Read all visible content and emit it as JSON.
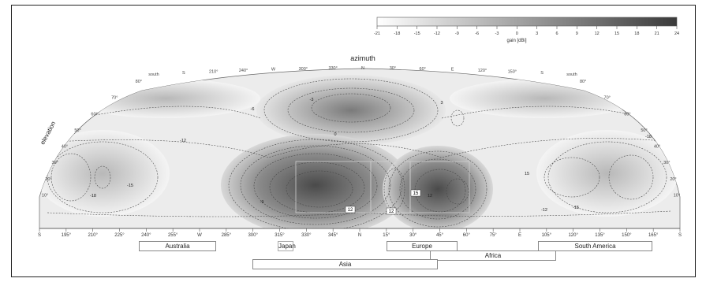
{
  "chart_data": {
    "type": "heatmap",
    "title": "",
    "xlabel": "azimuth",
    "ylabel": "elevation",
    "colorbar": {
      "label": "gain [dBi]",
      "ticks": [
        "-21",
        "-18",
        "-15",
        "-12",
        "-9",
        "-6",
        "-3",
        "0",
        "3",
        "6",
        "9",
        "12",
        "15",
        "18",
        "21",
        "24"
      ],
      "range": [
        -21,
        24
      ],
      "colormap": "white-to-dark-gray"
    },
    "x_ticks_bottom": [
      "S",
      "195°",
      "210°",
      "225°",
      "240°",
      "255°",
      "W",
      "285°",
      "300°",
      "315°",
      "330°",
      "345°",
      "N",
      "15°",
      "30°",
      "45°",
      "60°",
      "75°",
      "E",
      "105°",
      "120°",
      "135°",
      "150°",
      "165°",
      "S"
    ],
    "x_ticks_top": [
      "south",
      "S",
      "210°",
      "240°",
      "W",
      "300°",
      "330°",
      "N",
      "30°",
      "60°",
      "E",
      "120°",
      "150°",
      "S",
      "south"
    ],
    "elevation_ticks": [
      "10°",
      "20°",
      "30°",
      "40°",
      "50°",
      "60°",
      "70°",
      "80°"
    ],
    "contour_labels": [
      "-18",
      "-15",
      "-12",
      "-9",
      "-6",
      "-3",
      "0",
      "3",
      "12",
      "15",
      "-12",
      "-15",
      "-18"
    ],
    "peak_labels": [
      "12",
      "12",
      "15"
    ],
    "regions": [
      "Australia",
      "Japan",
      "Europe",
      "Africa",
      "South America",
      "Asia"
    ],
    "colors": {
      "high": "#3a3a3a",
      "low": "#ffffff",
      "contour": "#333333"
    }
  }
}
